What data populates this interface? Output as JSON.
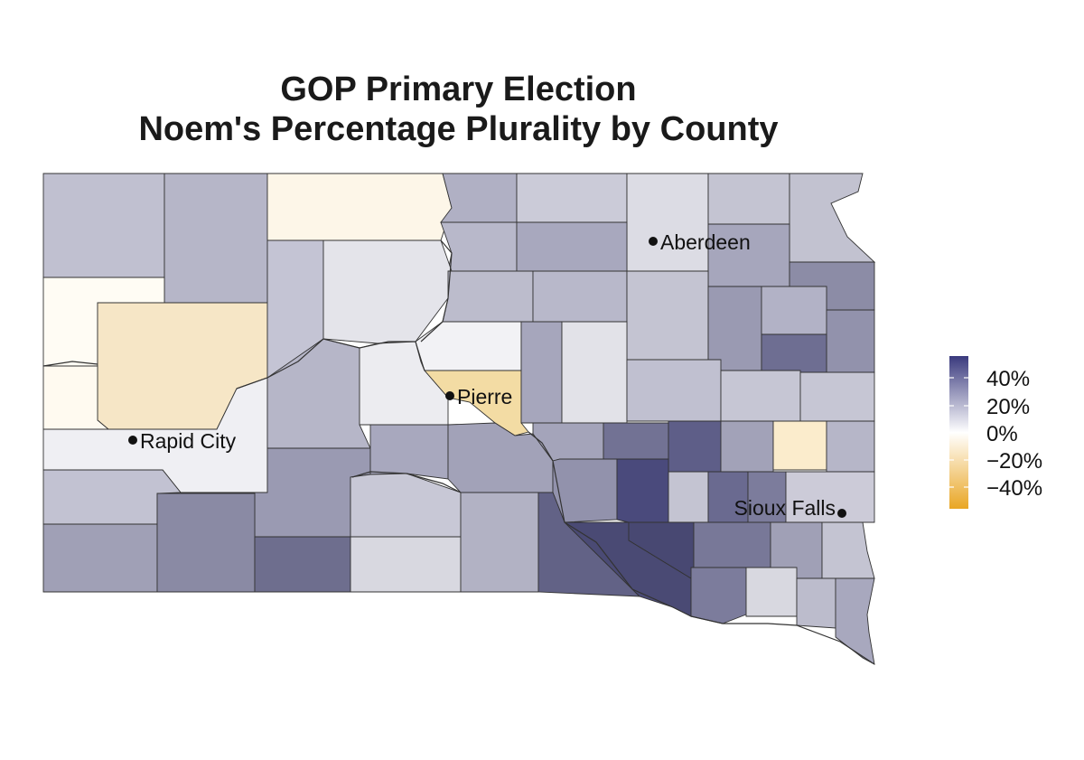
{
  "title": {
    "line1": "GOP Primary Election",
    "line2": "Noem's Percentage Plurality by County"
  },
  "cities": [
    {
      "name": "Aberdeen"
    },
    {
      "name": "Pierre"
    },
    {
      "name": "Rapid City"
    },
    {
      "name": "Sioux Falls"
    }
  ],
  "legend": {
    "ticks": [
      "40%",
      "20%",
      "0%",
      "−20%",
      "−40%"
    ],
    "colors": {
      "high": "#3a3a7e",
      "mid": "#ffffff",
      "low": "#e9a624"
    }
  },
  "colors": {
    "border": "#333333"
  }
}
